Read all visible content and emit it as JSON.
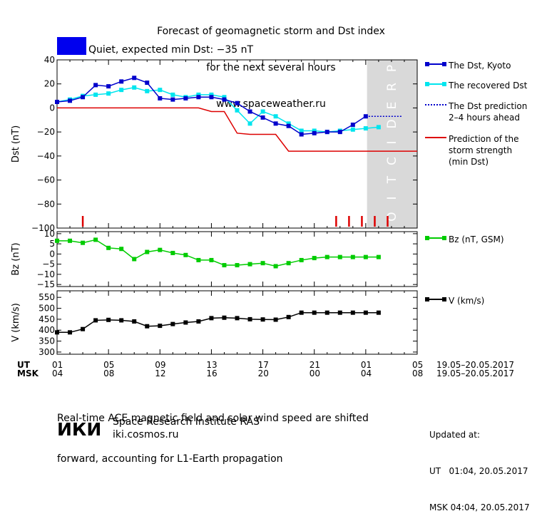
{
  "title": {
    "line1": "Forecast of geomagnetic storm and Dst index",
    "line2": "for the next several hours",
    "line3": "www.spaceweather.ru"
  },
  "status": {
    "text": "Quiet, expected min Dst: −35 nT",
    "color": "#0000ee"
  },
  "legend": {
    "dst_kyoto": "The Dst, Kyoto",
    "dst_recovered": "The recovered Dst",
    "dst_prediction": "The Dst prediction\n2–4 hours ahead",
    "storm_strength": "Prediction of the\nstorm strength\n(min Dst)",
    "bz": "Bz (nT, GSM)",
    "v": "V (km/s)"
  },
  "prediction_band_label": "PREDICTION",
  "time_axis": {
    "ut_label": "UT",
    "msk_label": "MSK",
    "ut_ticks": [
      "01",
      "05",
      "09",
      "13",
      "17",
      "21",
      "01",
      "05"
    ],
    "msk_ticks": [
      "04",
      "08",
      "12",
      "16",
      "20",
      "00",
      "04",
      "08"
    ],
    "ut_range": "19.05–20.05.2017",
    "msk_range": "19.05–20.05.2017"
  },
  "footer": {
    "note_line1": "Real-time ACE magnetic field and solar wind speed are shifted",
    "note_line2": "forward, accounting for L1-Earth propagation",
    "institute": "Space Research Institute RAS",
    "site": "iki.cosmos.ru",
    "logo": "ИКИ",
    "updated_label": "Updated at:",
    "updated_ut": "UT   01:04, 20.05.2017",
    "updated_msk": "MSK 04:04, 20.05.2017"
  },
  "colors": {
    "dst_kyoto": "#0000cc",
    "dst_recovered": "#00e5ee",
    "storm": "#dd0000",
    "bz": "#00cc00",
    "v": "#000000",
    "prediction_band": "#d9d9d9"
  },
  "chart_data": [
    {
      "type": "line",
      "ylabel": "Dst (nT)",
      "ylim": [
        -100,
        40
      ],
      "yticks": [
        40,
        20,
        0,
        -20,
        -40,
        -60,
        -80,
        -100
      ],
      "x_unit": "hours UT from 01:00 19.05.2017",
      "xlim": [
        0,
        28
      ],
      "series": [
        {
          "name": "The Dst, Kyoto",
          "x": [
            0,
            1,
            2,
            3,
            4,
            5,
            6,
            7,
            8,
            9,
            10,
            11,
            12,
            13,
            14,
            15,
            16,
            17,
            18,
            19,
            20,
            21,
            22,
            23,
            24
          ],
          "values": [
            5,
            6,
            9,
            19,
            18,
            22,
            25,
            21,
            8,
            7,
            8,
            9,
            9,
            7,
            4,
            -3,
            -8,
            -13,
            -15,
            -22,
            -21,
            -20,
            -20,
            -14,
            -7
          ]
        },
        {
          "name": "The recovered Dst",
          "x": [
            0,
            1,
            2,
            3,
            4,
            5,
            6,
            7,
            8,
            9,
            10,
            11,
            12,
            13,
            14,
            15,
            16,
            17,
            18,
            19,
            20,
            21,
            22,
            23,
            24,
            25
          ],
          "values": [
            5,
            7,
            10,
            11,
            12,
            15,
            17,
            14,
            15,
            11,
            9,
            11,
            11,
            9,
            -2,
            -13,
            -3,
            -7,
            -13,
            -19,
            -19,
            -20,
            -19,
            -18,
            -17,
            -16
          ]
        },
        {
          "name": "The Dst prediction 2–4 hours ahead",
          "x": [
            24,
            25,
            26.8
          ],
          "values": [
            -7,
            -7,
            -7
          ]
        },
        {
          "name": "Prediction of the storm strength (min Dst)",
          "x": [
            0,
            11,
            12,
            13,
            14,
            15,
            16,
            17,
            18,
            28
          ],
          "values": [
            0,
            0,
            -3,
            -3,
            -21,
            -22,
            -22,
            -22,
            -36,
            -36
          ]
        }
      ],
      "storm_markers_x": [
        2,
        21.7,
        22.7,
        23.7,
        24.7,
        25.7
      ],
      "prediction_band_x": [
        24.1,
        28
      ]
    },
    {
      "type": "line",
      "ylabel": "Bz (nT)",
      "ylim": [
        -16,
        11
      ],
      "yticks": [
        10,
        5,
        0,
        -5,
        -10,
        -15
      ],
      "series": [
        {
          "name": "Bz (nT, GSM)",
          "x": [
            0,
            1,
            2,
            3,
            4,
            5,
            6,
            7,
            8,
            9,
            10,
            11,
            12,
            13,
            14,
            15,
            16,
            17,
            18,
            19,
            20,
            21,
            22,
            23,
            24,
            25
          ],
          "values": [
            6.5,
            6.5,
            5.5,
            7,
            3,
            2.5,
            -2.5,
            1,
            2,
            0.5,
            -0.5,
            -3,
            -3,
            -5.5,
            -5.5,
            -5,
            -4.5,
            -6,
            -4.5,
            -3,
            -2,
            -1.5,
            -1.5,
            -1.5,
            -1.5,
            -1.5
          ]
        }
      ]
    },
    {
      "type": "line",
      "ylabel": "V (km/s)",
      "ylim": [
        290,
        580
      ],
      "yticks": [
        550,
        500,
        450,
        400,
        350,
        300
      ],
      "series": [
        {
          "name": "V (km/s)",
          "x": [
            0,
            1,
            2,
            3,
            4,
            5,
            6,
            7,
            8,
            9,
            10,
            11,
            12,
            13,
            14,
            15,
            16,
            17,
            18,
            19,
            20,
            21,
            22,
            23,
            24,
            25
          ],
          "values": [
            390,
            390,
            405,
            445,
            447,
            445,
            440,
            418,
            420,
            428,
            435,
            440,
            455,
            457,
            455,
            450,
            449,
            448,
            460,
            480,
            480,
            480,
            480,
            480,
            480,
            480
          ]
        }
      ]
    }
  ]
}
